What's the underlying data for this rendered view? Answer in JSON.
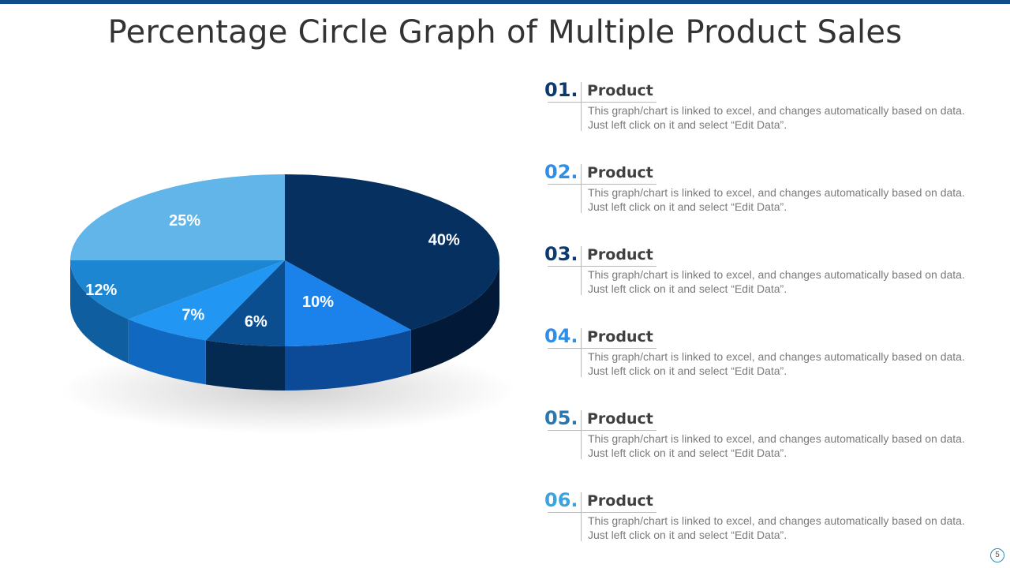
{
  "title": "Percentage Circle Graph of Multiple Product Sales",
  "page_number": "5",
  "items": [
    {
      "num": "01.",
      "label": "Product",
      "desc": "This graph/chart is linked to excel, and changes automatically based on data. Just left click on it and select “Edit Data”.",
      "num_color": "#0b3a70"
    },
    {
      "num": "02.",
      "label": "Product",
      "desc": "This graph/chart is linked to excel, and changes automatically based on data. Just left click on it and select “Edit Data”.",
      "num_color": "#2d8fe8"
    },
    {
      "num": "03.",
      "label": "Product",
      "desc": "This graph/chart is linked to excel, and changes automatically based on data. Just left click on it and select “Edit Data”.",
      "num_color": "#0b3a70"
    },
    {
      "num": "04.",
      "label": "Product",
      "desc": "This graph/chart is linked to excel, and changes automatically based on data. Just left click on it and select “Edit Data”.",
      "num_color": "#2d8fe8"
    },
    {
      "num": "05.",
      "label": "Product",
      "desc": "This graph/chart is linked to excel, and changes automatically based on data. Just left click on it and select “Edit Data”.",
      "num_color": "#2a78b0"
    },
    {
      "num": "06.",
      "label": "Product",
      "desc": "This graph/chart is linked to excel, and changes automatically based on data. Just left click on it and select “Edit Data”.",
      "num_color": "#3aa3e0"
    }
  ],
  "chart_data": {
    "type": "pie",
    "style": "3d",
    "categories": [
      "",
      "",
      "",
      "",
      "",
      ""
    ],
    "values": [
      40,
      10,
      6,
      7,
      12,
      25
    ],
    "labels": [
      "40%",
      "10%",
      "6%",
      "7%",
      "12%",
      "25%"
    ],
    "colors": [
      "#06305f",
      "#1a82ea",
      "#0b4e90",
      "#2196f3",
      "#1c86d2",
      "#62b5e8"
    ],
    "side_colors": [
      "#021a38",
      "#0c4a98",
      "#042a52",
      "#1168c0",
      "#0f5fa0",
      "#3b8fcc"
    ],
    "start_angle_deg": 0,
    "direction": "clockwise"
  }
}
